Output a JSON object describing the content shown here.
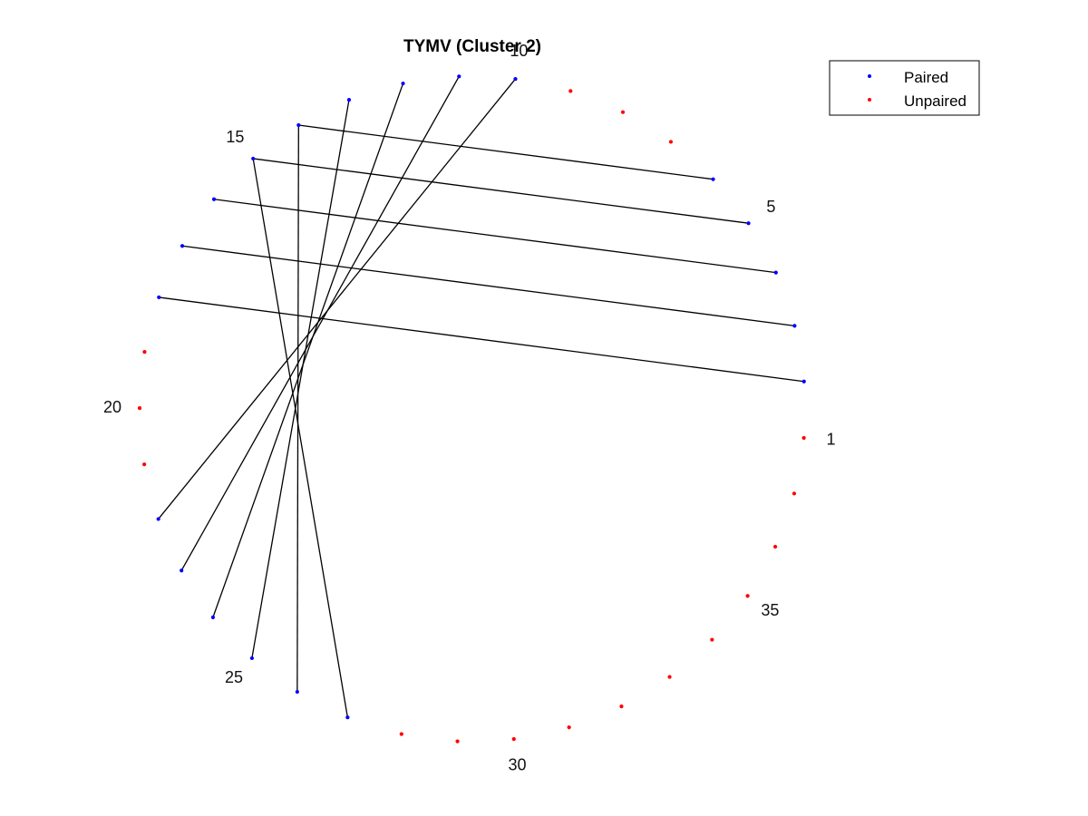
{
  "chart_data": {
    "type": "scatter",
    "title": "TYMV (Cluster 2)",
    "n_positions": 37,
    "start_angle_deg": -5,
    "colors": {
      "paired": "#0000ff",
      "unpaired": "#ff0000",
      "line": "#000000"
    },
    "pairs": [
      [
        2,
        18
      ],
      [
        3,
        17
      ],
      [
        4,
        16
      ],
      [
        5,
        15
      ],
      [
        6,
        14
      ],
      [
        10,
        22
      ],
      [
        11,
        23
      ],
      [
        12,
        24
      ],
      [
        13,
        25
      ],
      [
        14,
        26
      ],
      [
        15,
        27
      ]
    ],
    "position_labels": [
      {
        "index": 1,
        "text": "1"
      },
      {
        "index": 5,
        "text": "5"
      },
      {
        "index": 10,
        "text": "10"
      },
      {
        "index": 15,
        "text": "15"
      },
      {
        "index": 20,
        "text": "20"
      },
      {
        "index": 25,
        "text": "25"
      },
      {
        "index": 30,
        "text": "30"
      },
      {
        "index": 35,
        "text": "35"
      }
    ],
    "legend": {
      "placement": "top-right",
      "entries": [
        {
          "key": "paired",
          "label": "Paired"
        },
        {
          "key": "unpaired",
          "label": "Unpaired"
        }
      ]
    }
  }
}
